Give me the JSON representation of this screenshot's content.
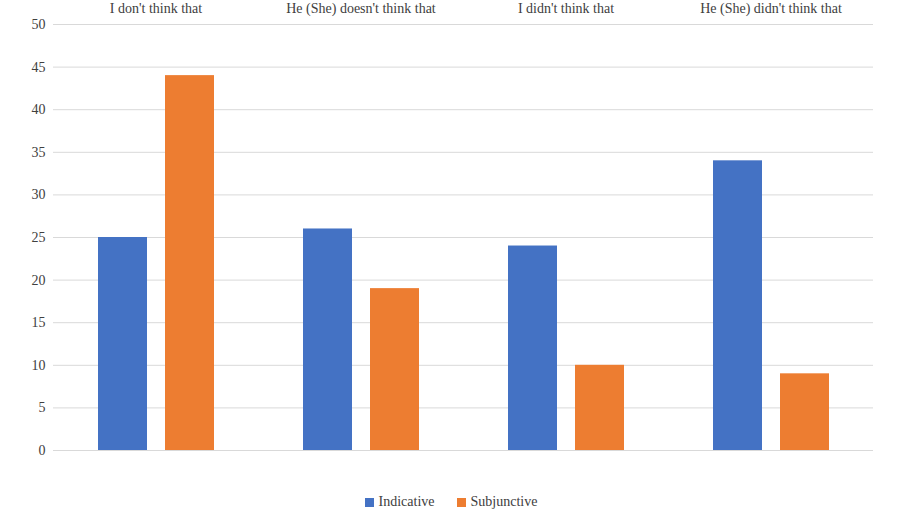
{
  "chart_data": {
    "type": "bar",
    "categories": [
      "I don't think that",
      "He (She) doesn't think that",
      "I didn't think that",
      "He (She) didn't think that"
    ],
    "series": [
      {
        "name": "Indicative",
        "color": "#4472c4",
        "values": [
          25,
          26,
          24,
          34
        ]
      },
      {
        "name": "Subjunctive",
        "color": "#ed7d31",
        "values": [
          44,
          19,
          10,
          9
        ]
      }
    ],
    "ylim": [
      0,
      50
    ],
    "yticks": [
      0,
      5,
      10,
      15,
      20,
      25,
      30,
      35,
      40,
      45,
      50
    ],
    "grid": true,
    "legend": "bottom"
  }
}
